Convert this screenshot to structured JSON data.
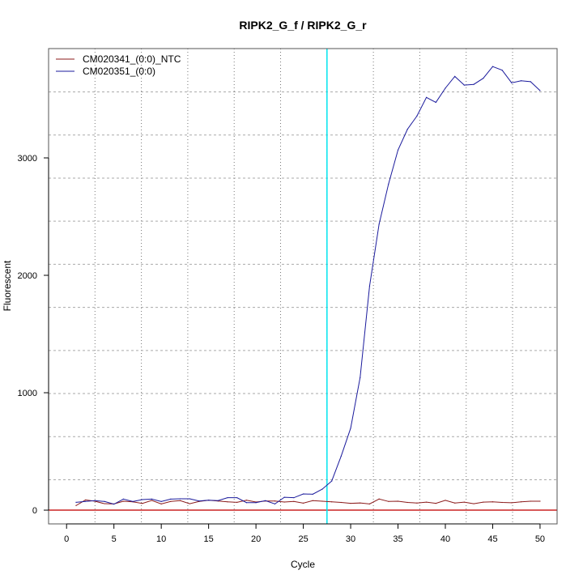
{
  "chart_data": {
    "type": "line",
    "title": "RIPK2_G_f / RIPK2_G_r",
    "xlabel": "Cycle",
    "ylabel": "Fluorescent",
    "xlim": [
      -1.9,
      51.8
    ],
    "ylim": [
      -117,
      3931
    ],
    "x_ticks": [
      0,
      5,
      10,
      15,
      20,
      25,
      30,
      35,
      40,
      45,
      50
    ],
    "y_ticks": [
      0,
      1000,
      2000,
      3000
    ],
    "grid": true,
    "legend_position": "top-left",
    "threshold_cycle": 27.5,
    "baseline_value": 0,
    "colors": {
      "ntc": "#8b1a1a",
      "sample": "#1a1a9c",
      "threshold": "#00e5ee",
      "baseline": "#cc2222"
    },
    "x": [
      1,
      2,
      3,
      4,
      5,
      6,
      7,
      8,
      9,
      10,
      11,
      12,
      13,
      14,
      15,
      16,
      17,
      18,
      19,
      20,
      21,
      22,
      23,
      24,
      25,
      26,
      27,
      28,
      29,
      30,
      31,
      32,
      33,
      34,
      35,
      36,
      37,
      38,
      39,
      40,
      41,
      42,
      43,
      44,
      45,
      46,
      47,
      48,
      49,
      50
    ],
    "series": [
      {
        "name": "CM020341_(0:0)_NTC",
        "color": "#8b1a1a",
        "values": [
          39,
          87,
          76,
          55,
          53,
          76,
          71,
          57,
          83,
          53,
          74,
          81,
          55,
          74,
          85,
          78,
          71,
          67,
          85,
          69,
          78,
          78,
          69,
          74,
          60,
          81,
          76,
          71,
          66,
          58,
          61,
          53,
          95,
          74,
          76,
          66,
          61,
          68,
          58,
          84,
          61,
          68,
          55,
          68,
          71,
          66,
          63,
          71,
          76,
          76
        ]
      },
      {
        "name": "CM020351_(0:0)",
        "color": "#1a1a9c",
        "values": [
          67,
          74,
          81,
          74,
          51,
          94,
          74,
          90,
          94,
          74,
          94,
          97,
          97,
          78,
          85,
          81,
          106,
          106,
          64,
          64,
          81,
          53,
          110,
          106,
          138,
          136,
          179,
          248,
          461,
          698,
          1130,
          1909,
          2435,
          2778,
          3067,
          3244,
          3357,
          3515,
          3473,
          3594,
          3694,
          3620,
          3626,
          3678,
          3778,
          3747,
          3639,
          3657,
          3649,
          3573
        ]
      }
    ]
  }
}
